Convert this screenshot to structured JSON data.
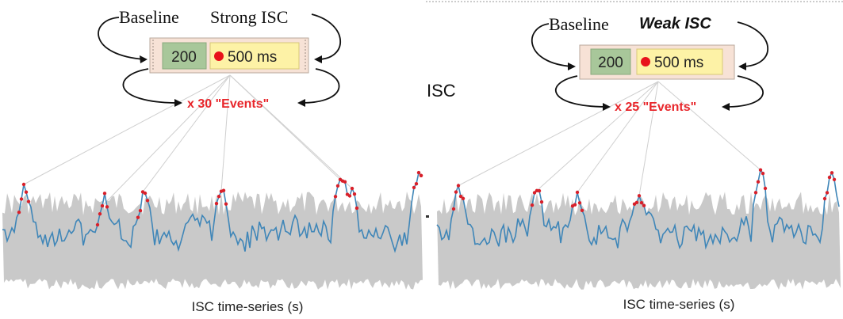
{
  "colors": {
    "band": "#c9c9c9",
    "line": "#3f86b8",
    "event": "#d8202a",
    "connector": "#cfcfcf",
    "outer_box": "#f7e2d6",
    "baseline_box": "#a8c79a",
    "event_box": "#fdf2a6",
    "red_dot": "#e8121b",
    "events_text": "#e8262b"
  },
  "left_panel": {
    "label_baseline": "Baseline",
    "label_condition": "Strong ISC",
    "box_baseline": "200",
    "box_event": "500 ms",
    "events_text": "x 30 \"Events\"",
    "xlabel": "ISC time-series (s)",
    "event_count": 30
  },
  "right_panel": {
    "label_baseline": "Baseline",
    "label_condition": "Weak ISC",
    "box_baseline": "200",
    "box_event": "500 ms",
    "events_text": "x 25 \"Events\"",
    "xlabel": "ISC time-series (s)",
    "event_count": 25
  },
  "side_label": "ISC"
}
